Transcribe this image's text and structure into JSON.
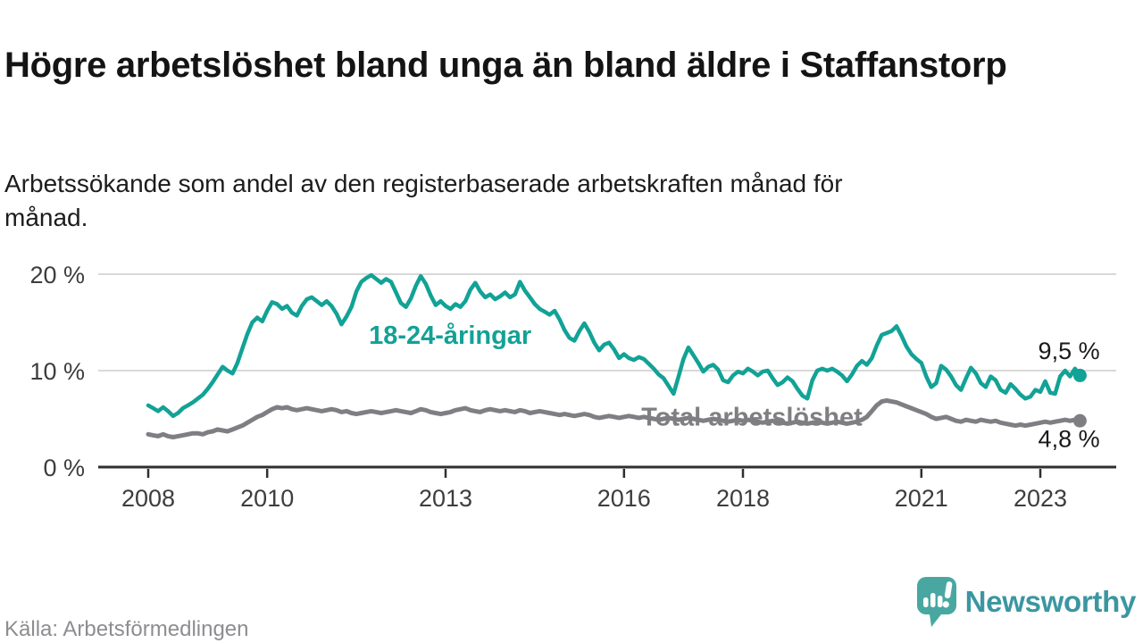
{
  "header": {
    "title": "Högre arbetslöshet bland unga än bland äldre i Staffanstorp",
    "subtitle": "Arbetssökande som andel av den registerbaserade arbetskraften månad för månad."
  },
  "footer": {
    "source": "Källa: Arbetsförmedlingen",
    "brand_name": "Newsworthy",
    "brand_color": "#3b96a1",
    "brand_icon": "speech-bubble-bar-chart-icon",
    "brand_icon_color": "#48a8a1"
  },
  "chart_data": {
    "type": "line",
    "title": "Högre arbetslöshet bland unga än bland äldre i Staffanstorp",
    "subtitle": "Arbetssökande som andel av den registerbaserade arbetskraften månad för månad.",
    "unit": "%",
    "x_start_year": 2008,
    "x_step_months": 1,
    "x_end_label": "2023-09",
    "xlim": [
      2007.15,
      2024.3
    ],
    "ylim": [
      0,
      21.5
    ],
    "grid": "horizontal",
    "grid_color": "#d9d9d9",
    "axis_color": "#2f2f2f",
    "tick_label_color": "#3d3d3d",
    "value_label_color": "#1a1a1a",
    "x_ticks": [
      2008,
      2010,
      2013,
      2016,
      2018,
      2021,
      2023
    ],
    "y_ticks": [
      0,
      10,
      20
    ],
    "y_tick_suffix": " %",
    "legend_position": "inline-labels",
    "series": [
      {
        "name": "18-24-åringar",
        "color": "#12a296",
        "line_width": 4.5,
        "label_pos": {
          "x": 2011.71,
          "y": 12.8
        },
        "end_value_label": "9,5 %",
        "end_label_pos": {
          "x": 2024.0,
          "y": 11.2
        },
        "values": [
          6.4,
          6.1,
          5.8,
          6.2,
          5.8,
          5.3,
          5.6,
          6.1,
          6.4,
          6.7,
          7.1,
          7.5,
          8.1,
          8.8,
          9.6,
          10.4,
          10.0,
          9.7,
          10.8,
          12.3,
          13.8,
          15.0,
          15.5,
          15.1,
          16.2,
          17.1,
          16.9,
          16.4,
          16.7,
          16.0,
          15.7,
          16.7,
          17.4,
          17.6,
          17.2,
          16.8,
          17.2,
          16.7,
          15.9,
          14.8,
          15.6,
          16.6,
          18.2,
          19.2,
          19.6,
          19.9,
          19.5,
          19.1,
          19.5,
          19.2,
          18.1,
          17.0,
          16.6,
          17.5,
          18.8,
          19.8,
          19.0,
          17.8,
          16.8,
          17.2,
          16.7,
          16.4,
          16.9,
          16.6,
          17.2,
          18.4,
          19.1,
          18.2,
          17.6,
          17.9,
          17.4,
          17.7,
          18.1,
          17.6,
          17.9,
          19.2,
          18.3,
          17.6,
          16.9,
          16.4,
          16.1,
          15.8,
          16.2,
          15.3,
          14.2,
          13.4,
          13.1,
          14.1,
          14.9,
          14.0,
          12.9,
          12.1,
          12.7,
          12.9,
          12.2,
          11.3,
          11.7,
          11.3,
          11.1,
          11.4,
          11.2,
          10.7,
          10.2,
          9.6,
          9.2,
          8.4,
          7.6,
          9.4,
          11.2,
          12.4,
          11.6,
          10.8,
          9.9,
          10.4,
          10.6,
          10.1,
          9.0,
          8.8,
          9.5,
          9.9,
          9.7,
          10.2,
          9.9,
          9.5,
          9.9,
          10.0,
          9.2,
          8.5,
          8.8,
          9.3,
          8.9,
          8.1,
          7.4,
          7.1,
          9.0,
          10.0,
          10.2,
          10.0,
          10.2,
          9.9,
          9.5,
          8.9,
          9.6,
          10.5,
          11.0,
          10.6,
          11.3,
          12.6,
          13.7,
          13.9,
          14.1,
          14.6,
          13.6,
          12.5,
          11.7,
          11.2,
          10.8,
          9.4,
          8.3,
          8.7,
          10.5,
          10.1,
          9.4,
          8.5,
          8.0,
          9.2,
          10.3,
          9.7,
          8.7,
          8.3,
          9.4,
          9.0,
          8.0,
          7.7,
          8.6,
          8.1,
          7.5,
          7.1,
          7.3,
          8.0,
          7.8,
          8.9,
          7.7,
          7.6,
          9.4,
          10.0,
          9.4,
          10.2,
          9.5
        ]
      },
      {
        "name": "Total arbetslöshet",
        "color": "#7f7f83",
        "line_width": 5,
        "label_pos": {
          "x": 2016.29,
          "y": 4.3
        },
        "end_value_label": "4,8 %",
        "end_label_pos": {
          "x": 2024.0,
          "y": 2.1
        },
        "values": [
          3.4,
          3.3,
          3.2,
          3.4,
          3.2,
          3.1,
          3.2,
          3.3,
          3.4,
          3.5,
          3.5,
          3.4,
          3.6,
          3.7,
          3.9,
          3.8,
          3.7,
          3.9,
          4.1,
          4.3,
          4.6,
          4.9,
          5.2,
          5.4,
          5.7,
          6.0,
          6.2,
          6.1,
          6.2,
          6.0,
          5.9,
          6.0,
          6.1,
          6.0,
          5.9,
          5.8,
          5.9,
          6.0,
          5.9,
          5.7,
          5.8,
          5.6,
          5.5,
          5.6,
          5.7,
          5.8,
          5.7,
          5.6,
          5.7,
          5.8,
          5.9,
          5.8,
          5.7,
          5.6,
          5.8,
          6.0,
          5.9,
          5.7,
          5.6,
          5.5,
          5.6,
          5.7,
          5.9,
          6.0,
          6.1,
          5.9,
          5.8,
          5.7,
          5.9,
          6.0,
          5.9,
          5.8,
          5.9,
          5.8,
          5.7,
          5.9,
          5.8,
          5.6,
          5.7,
          5.8,
          5.7,
          5.6,
          5.5,
          5.4,
          5.5,
          5.4,
          5.3,
          5.4,
          5.5,
          5.4,
          5.2,
          5.1,
          5.2,
          5.3,
          5.2,
          5.1,
          5.2,
          5.3,
          5.2,
          5.1,
          5.2,
          5.1,
          5.0,
          4.9,
          5.0,
          5.1,
          5.0,
          4.9,
          5.0,
          5.1,
          5.0,
          4.9,
          4.8,
          4.9,
          5.0,
          4.9,
          4.8,
          4.7,
          4.8,
          4.9,
          4.8,
          4.9,
          4.8,
          4.7,
          4.6,
          4.7,
          4.8,
          4.7,
          4.6,
          4.5,
          4.6,
          4.7,
          4.6,
          4.5,
          4.6,
          4.7,
          4.6,
          4.5,
          4.6,
          4.7,
          4.6,
          4.5,
          4.6,
          4.7,
          4.9,
          5.2,
          5.8,
          6.4,
          6.8,
          6.9,
          6.8,
          6.7,
          6.5,
          6.3,
          6.1,
          5.9,
          5.7,
          5.5,
          5.2,
          5.0,
          5.1,
          5.2,
          5.0,
          4.8,
          4.7,
          4.9,
          4.8,
          4.7,
          4.9,
          4.8,
          4.7,
          4.8,
          4.6,
          4.5,
          4.4,
          4.3,
          4.4,
          4.3,
          4.4,
          4.5,
          4.6,
          4.7,
          4.6,
          4.7,
          4.8,
          4.9,
          4.8,
          4.9,
          4.8
        ]
      }
    ]
  }
}
